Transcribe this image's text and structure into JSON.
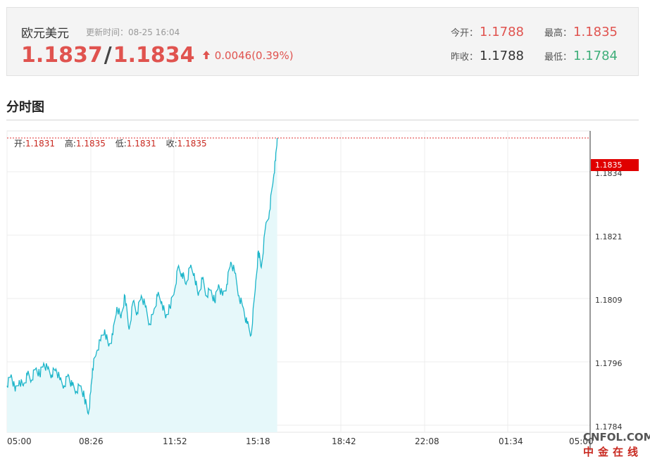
{
  "header": {
    "pair_name": "欧元美元",
    "update_time": "更新时间：08-25 16:04",
    "bid": "1.1837",
    "separator": "/",
    "ask": "1.1834",
    "change": "0.0046(0.39%)",
    "today_open_label": "今开：",
    "today_open": "1.1788",
    "high_label": "最高：",
    "high": "1.1835",
    "prev_close_label": "昨收：",
    "prev_close": "1.1788",
    "low_label": "最低：",
    "low": "1.1784",
    "up_color": "#e0534f",
    "down_color": "#3fae7a"
  },
  "section": {
    "title": "分时图"
  },
  "ohlc": {
    "open_label": "开:",
    "open": "1.1831",
    "high_label": "高:",
    "high": "1.1835",
    "low_label": "低:",
    "low": "1.1831",
    "close_label": "收:",
    "close": "1.1835"
  },
  "price_tag": "1.1835",
  "watermark": {
    "top": "CNFOL.COM",
    "bottom": "中金在线"
  },
  "chart_data": {
    "type": "area",
    "y_ticks": [
      "1.1834",
      "1.1821",
      "1.1809",
      "1.1796",
      "1.1784"
    ],
    "x_ticks": [
      "05:00",
      "08:26",
      "11:52",
      "15:18",
      "18:42",
      "22:08",
      "01:34",
      "05:00"
    ],
    "ylim": [
      1.1783,
      1.1836
    ],
    "last_price": 1.1835,
    "line_color": "#1cb5c9",
    "fill_color": "#e6f8fa",
    "series": [
      {
        "x": [
          "05:00",
          "05:10",
          "05:20",
          "05:30",
          "05:40",
          "05:50",
          "06:00",
          "06:10",
          "06:20",
          "06:30",
          "06:40",
          "06:50",
          "07:00",
          "07:10",
          "07:20",
          "07:30",
          "07:40",
          "07:50",
          "08:00",
          "08:10",
          "08:20",
          "08:26",
          "08:30",
          "08:40",
          "08:50",
          "09:00",
          "09:10",
          "09:20",
          "09:30",
          "09:40",
          "09:50",
          "10:00",
          "10:10",
          "10:20",
          "10:30",
          "10:40",
          "10:50",
          "11:00",
          "11:10",
          "11:20",
          "11:30",
          "11:40",
          "11:52",
          "12:00",
          "12:10",
          "12:20",
          "12:30",
          "12:40",
          "12:50",
          "13:00",
          "13:10",
          "13:20",
          "13:30",
          "13:40",
          "13:50",
          "14:00",
          "14:10",
          "14:20",
          "14:30",
          "14:40",
          "14:50",
          "15:00",
          "15:10",
          "15:18",
          "15:25",
          "15:35",
          "15:45",
          "15:55",
          "16:00",
          "16:04"
        ],
        "y": [
          1.1791,
          1.1793,
          1.179,
          1.1792,
          1.1791,
          1.1793,
          1.1792,
          1.1794,
          1.1793,
          1.1795,
          1.1794,
          1.1793,
          1.1794,
          1.1792,
          1.1791,
          1.1793,
          1.1791,
          1.179,
          1.1791,
          1.1789,
          1.1786,
          1.179,
          1.1794,
          1.1797,
          1.1799,
          1.1801,
          1.1798,
          1.18,
          1.1805,
          1.1803,
          1.1807,
          1.1801,
          1.1806,
          1.1804,
          1.1807,
          1.1805,
          1.1802,
          1.1804,
          1.1807,
          1.1806,
          1.1803,
          1.1805,
          1.1808,
          1.1812,
          1.1811,
          1.1809,
          1.1812,
          1.1811,
          1.1807,
          1.181,
          1.1807,
          1.1808,
          1.1806,
          1.1809,
          1.1807,
          1.1809,
          1.1813,
          1.1811,
          1.1807,
          1.1805,
          1.1802,
          1.18,
          1.1808,
          1.1815,
          1.1812,
          1.1819,
          1.1822,
          1.1828,
          1.1831,
          1.1835
        ]
      }
    ]
  }
}
